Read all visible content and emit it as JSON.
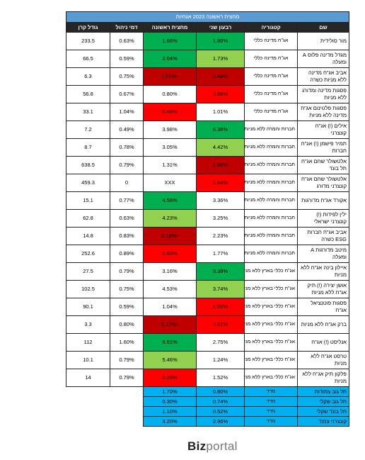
{
  "table": {
    "title": "מחצית ראשונה 2023 אגחיות",
    "columns": [
      "שם",
      "קטגוריה",
      "רבעון שני",
      "מחצית ראשונה",
      "דמי ניהול",
      "גודל קרן"
    ],
    "rows": [
      [
        "מור סולידית",
        "אג\"ח מדינה כללי",
        "1.86%",
        "1.66%",
        "0.63%",
        "233.5"
      ],
      [
        "מגדל מדינה פלוס A ומעלה",
        "אג\"ח מדינה כללי",
        "1.73%",
        "2.04%",
        "0.59%",
        "66.5"
      ],
      [
        "אביב אג\"ח מדינה ללא מניות כשרה",
        "אג\"ח מדינה כללי",
        "0.48%",
        "-1.01%",
        "0.75%",
        "6.3"
      ],
      [
        "פסגות מדינה ומדורג ללא מניות",
        "אג\"ח מדינה כללי",
        "0.56%",
        "0.80%",
        "0.67%",
        "56.8"
      ],
      [
        "פסגות פלטינום אג\"ח מדינה ללא מניות",
        "אג\"ח מדינה כללי",
        "1.01%",
        "0.46%",
        "1.04%",
        "33.1"
      ],
      [
        "אילים (!) אג\"ח קונצרני",
        "חברות והמרה ללא מניות",
        "6.36%",
        "3.98%",
        "0.49%",
        "7.2"
      ],
      [
        "תמיר פישמן (!) אג\"ח חברות",
        "חברות והמרה ללא מניות",
        "4.42%",
        "3.05%",
        "0.78%",
        "8.7"
      ],
      [
        "אלטשולר שחם אג\"ח תל בונד",
        "חברות והמרה ללא מניות",
        "1.60%",
        "1.31%",
        "0.79%",
        "638.5"
      ],
      [
        "אלטשולר שחם אג\"ח קונצרני מדורג",
        "חברות והמרה ללא מניות",
        "1.64%",
        "XXX",
        "0",
        "459.3"
      ],
      [
        "אקורד אג\"ח מדורגות",
        "חברות והמרה ללא מניות",
        "3.36%",
        "4.56%",
        "0.77%",
        "15.1"
      ],
      [
        "ילין לפידות (!) קונצרני ישראלי",
        "חברות והמרה ללא מניות",
        "3.25%",
        "4.23%",
        "0.63%",
        "62.8"
      ],
      [
        "אביב אג\"ח חברות ESG כשרה",
        "חברות והמרה ללא מניות",
        "2.23%",
        "-0.18%",
        "0.83%",
        "14.8"
      ],
      [
        "מיטב מדורגות A ומעלה",
        "חברות והמרה ללא מניות",
        "1.77%",
        "0.63%",
        "0.89%",
        "252.6"
      ],
      [
        "איילון בינה אג\"ח ללא מניות",
        "אג\"ח כללי בארץ ללא מניות",
        "3.38%",
        "3.16%",
        "0.79%",
        "27.5"
      ],
      [
        "אושן יצירה (!) תיק אג\"ח ללא מניות",
        "אג\"ח כללי בארץ ללא מניות",
        "3.74%",
        "4.53%",
        "0.75%",
        "102.5"
      ],
      [
        "פסגות פוטנציאל אג\"ח",
        "אג\"ח כללי בארץ ללא מניות",
        "1.00%",
        "1.04%",
        "0.59%",
        "90.1"
      ],
      [
        "ברק אג\"ח ללא מניות",
        "אג\"ח כללי בארץ ללא מניות",
        "0.31%",
        "-0.17%",
        "0.80%",
        "3.3"
      ],
      [
        "אנליסט (!) אג\"ח",
        "אג\"ח כללי בארץ ללא מניות",
        "2.75%",
        "5.61%",
        "1.60%",
        "112"
      ],
      [
        "טרסט אג\"ח ללא מניות",
        "אג\"ח כללי בארץ ללא מניות",
        "1.24%",
        "5.46%",
        "0.79%",
        "10.1"
      ],
      [
        "פלקון תיק אג\"ח ללא מניות",
        "אג\"ח כללי בארץ ללא מניות",
        "1.52%",
        "0.25%",
        "0.79%",
        "14"
      ]
    ],
    "cell_colors": [
      [
        "#00b050",
        "#00b050"
      ],
      [
        "#92d050",
        "#00b050"
      ],
      [
        "#c00000",
        "#c00000"
      ],
      [
        "#ff0000",
        null
      ],
      [
        null,
        "#ff0000"
      ],
      [
        "#00b050",
        null
      ],
      [
        "#92d050",
        null
      ],
      [
        "#c00000",
        null
      ],
      [
        "#ff0000",
        null
      ],
      [
        null,
        "#00b050"
      ],
      [
        null,
        "#92d050"
      ],
      [
        null,
        "#c00000"
      ],
      [
        null,
        "#ff0000"
      ],
      [
        "#00b050",
        null
      ],
      [
        "#92d050",
        null
      ],
      [
        "#ff0000",
        null
      ],
      [
        "#ff0000",
        "#c00000"
      ],
      [
        null,
        "#00b050"
      ],
      [
        null,
        "#92d050"
      ],
      [
        null,
        "#ff0000"
      ]
    ],
    "index_rows": [
      [
        "תל גוב צמודות",
        "מדד",
        "0.80%",
        "1.70%"
      ],
      [
        "תל גוב שקלי",
        "מדד",
        "0.74%",
        "0.30%"
      ],
      [
        "תל בונד שקלי",
        "מדד",
        "0.52%",
        "1.10%"
      ],
      [
        "קונצרני צמוד",
        "מדד",
        "2.96%",
        "3.20%"
      ]
    ],
    "index_color": "#00b0f0"
  },
  "logo": {
    "bold": "Biz",
    "light": "portal"
  }
}
